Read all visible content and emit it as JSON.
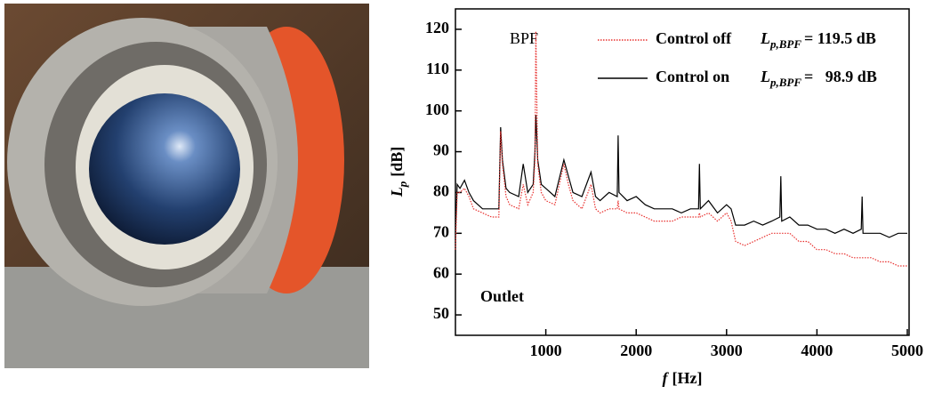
{
  "chart_data": {
    "type": "line",
    "annotation": "BPF",
    "inset_label": "Outlet",
    "x_label": {
      "symbol": "f",
      "unit": "[Hz]"
    },
    "y_label": {
      "symbol": "L",
      "subscript": "p",
      "unit": "[dB]"
    },
    "x": [
      0,
      20,
      50,
      100,
      150,
      200,
      300,
      400,
      480,
      500,
      520,
      560,
      600,
      700,
      750,
      800,
      860,
      880,
      890,
      910,
      950,
      1000,
      1100,
      1200,
      1250,
      1300,
      1400,
      1500,
      1550,
      1600,
      1700,
      1790,
      1800,
      1810,
      1900,
      2000,
      2100,
      2200,
      2300,
      2400,
      2500,
      2600,
      2690,
      2700,
      2710,
      2800,
      2900,
      3000,
      3050,
      3100,
      3200,
      3300,
      3400,
      3500,
      3590,
      3600,
      3610,
      3700,
      3800,
      3900,
      4000,
      4100,
      4200,
      4300,
      4400,
      4490,
      4500,
      4510,
      4600,
      4700,
      4800,
      4900,
      5000
    ],
    "series": [
      {
        "name": "Control off",
        "color": "#e8312f",
        "line_style": "dotted",
        "level": {
          "symbol": "L",
          "subscript": "p,BPF",
          "text": "= 119.5 dB"
        },
        "values": [
          66,
          80,
          80,
          81,
          79,
          76,
          75,
          74,
          74,
          95,
          87,
          79,
          77,
          76,
          82,
          77,
          80,
          88,
          119.5,
          87,
          80,
          78,
          77,
          87,
          82,
          78,
          76,
          82,
          76,
          75,
          76,
          76,
          78,
          76,
          75,
          75,
          74,
          73,
          73,
          73,
          74,
          74,
          74,
          75,
          74,
          75,
          73,
          75,
          73,
          68,
          67,
          68,
          69,
          70,
          70,
          70,
          70,
          70,
          68,
          68,
          66,
          66,
          65,
          65,
          64,
          64,
          64,
          64,
          64,
          63,
          63,
          62,
          62
        ]
      },
      {
        "name": "Control on",
        "color": "#000000",
        "line_style": "solid",
        "level": {
          "symbol": "L",
          "subscript": "p,BPF",
          "text": "=   98.9 dB"
        },
        "values": [
          70,
          82,
          81,
          83,
          80,
          78,
          76,
          76,
          76,
          96,
          88,
          81,
          80,
          79,
          87,
          80,
          82,
          90,
          99,
          88,
          82,
          81,
          79,
          88,
          84,
          80,
          79,
          85,
          79,
          78,
          80,
          79,
          94,
          80,
          78,
          79,
          77,
          76,
          76,
          76,
          75,
          76,
          76,
          87,
          76,
          78,
          75,
          77,
          76,
          72,
          72,
          73,
          72,
          73,
          74,
          84,
          73,
          74,
          72,
          72,
          71,
          71,
          70,
          71,
          70,
          71,
          79,
          70,
          70,
          70,
          69,
          70,
          70
        ]
      }
    ],
    "xlim": [
      0,
      5000
    ],
    "xticks": [
      1000,
      2000,
      3000,
      4000,
      5000
    ],
    "ylim": [
      45,
      125
    ],
    "yticks": [
      50,
      60,
      70,
      80,
      90,
      100,
      110,
      120
    ]
  }
}
